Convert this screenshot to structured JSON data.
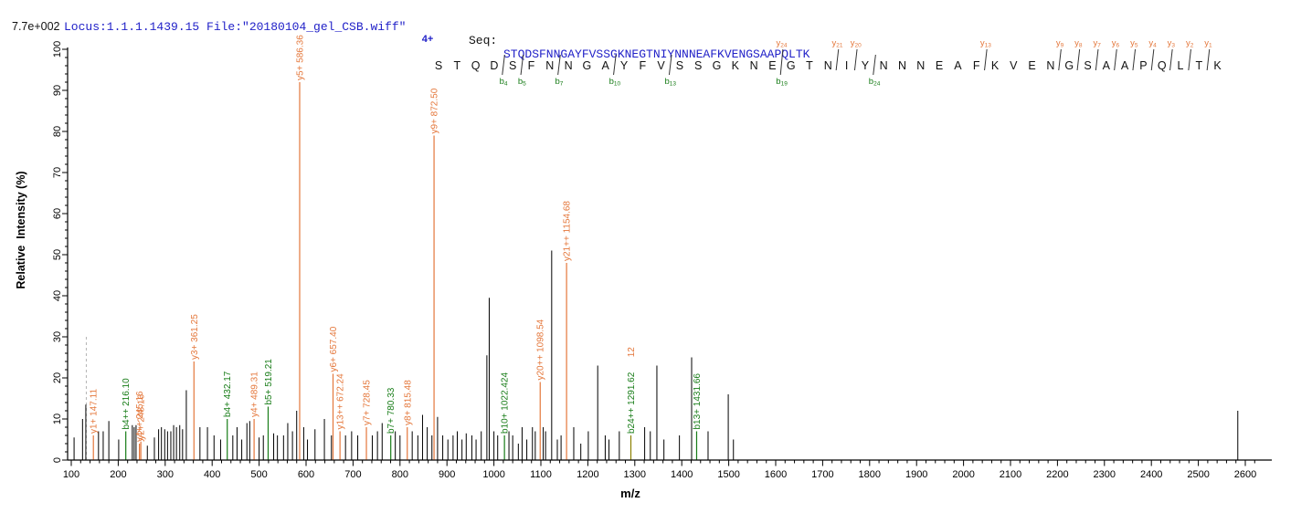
{
  "header": {
    "locus_text": "Locus:1.1.1.1439.15 File:\"20180104_gel_CSB.wiff\"",
    "seq_label": "Seq:",
    "seq_value": "STQDSFNNGAYFVSSGKNEGTNIYNNNEAFKVENGSAAPQLTK",
    "scale_note": "7.7e+002"
  },
  "colors": {
    "header_blue": "#2121c8",
    "y_ion_orange": "#e4773b",
    "b_ion_green": "#177c17",
    "peak_black": "#000000",
    "overlap_olive": "#8b8000",
    "dashed_gray": "#b4b4b4",
    "axis_black": "#000000"
  },
  "precursor": {
    "charge_label": "4+"
  },
  "sequence": {
    "residues": [
      "S",
      "T",
      "Q",
      "D",
      "S",
      "F",
      "N",
      "N",
      "G",
      "A",
      "Y",
      "F",
      "V",
      "S",
      "S",
      "G",
      "K",
      "N",
      "E",
      "G",
      "T",
      "N",
      "I",
      "Y",
      "N",
      "N",
      "N",
      "E",
      "A",
      "F",
      "K",
      "V",
      "E",
      "N",
      "G",
      "S",
      "A",
      "A",
      "P",
      "Q",
      "L",
      "T",
      "K"
    ],
    "b_ions": [
      {
        "n": 4,
        "after": 4
      },
      {
        "n": 5,
        "after": 5
      },
      {
        "n": 7,
        "after": 7
      },
      {
        "n": 10,
        "after": 10
      },
      {
        "n": 13,
        "after": 13
      },
      {
        "n": 19,
        "after": 19
      },
      {
        "n": 24,
        "after": 24
      }
    ],
    "y_ions": [
      {
        "n": 24,
        "before": 20
      },
      {
        "n": 21,
        "before": 23
      },
      {
        "n": 20,
        "before": 24
      },
      {
        "n": 13,
        "before": 31
      },
      {
        "n": 9,
        "before": 35
      },
      {
        "n": 8,
        "before": 36
      },
      {
        "n": 7,
        "before": 37
      },
      {
        "n": 6,
        "before": 38
      },
      {
        "n": 5,
        "before": 39
      },
      {
        "n": 4,
        "before": 40
      },
      {
        "n": 3,
        "before": 41
      },
      {
        "n": 2,
        "before": 42
      },
      {
        "n": 1,
        "before": 43
      }
    ]
  },
  "axes": {
    "x": {
      "label": "m/z",
      "min": 100,
      "max": 2600,
      "major_step": 100,
      "minor_step": 20,
      "tick_labels": [
        100,
        200,
        300,
        400,
        500,
        600,
        700,
        800,
        900,
        1000,
        1100,
        1200,
        1300,
        1400,
        1500,
        1600,
        1700,
        1800,
        1900,
        2000,
        2100,
        2200,
        2300,
        2400,
        2500,
        2600
      ]
    },
    "y": {
      "label": "Relative  Intensity (%)",
      "min": 0,
      "max": 100,
      "major_step": 10,
      "minor_step": 2,
      "tick_labels": [
        0,
        10,
        20,
        30,
        40,
        50,
        60,
        70,
        80,
        90,
        100
      ]
    }
  },
  "chart_data": {
    "type": "bar",
    "xlabel": "m/z",
    "ylabel": "Relative  Intensity (%)",
    "xlim": [
      100,
      2600
    ],
    "ylim": [
      0,
      100
    ],
    "full_scale_intensity": "7.7e+002",
    "dashed_marker": {
      "mz": 132,
      "pct": 30
    },
    "extra_label": {
      "text": "12",
      "mz": 1291.62,
      "color": "o"
    },
    "peaks": [
      [
        106,
        5.5,
        "k",
        null
      ],
      [
        124,
        10,
        "k",
        null
      ],
      [
        131,
        13.5,
        "k",
        null
      ],
      [
        147.11,
        6,
        "o",
        "y1+ 147.11"
      ],
      [
        158,
        7,
        "k",
        null
      ],
      [
        168,
        7,
        "k",
        null
      ],
      [
        180,
        9.5,
        "k",
        null
      ],
      [
        201,
        5,
        "k",
        null
      ],
      [
        216.1,
        7,
        "g",
        "b4++ 216.10"
      ],
      [
        230,
        8.5,
        "k",
        null
      ],
      [
        234,
        8,
        "k",
        null
      ],
      [
        238,
        8.5,
        "k",
        null
      ],
      [
        245.16,
        4,
        "o",
        "y4++ 245.16"
      ],
      [
        248.16,
        4.5,
        "o",
        "y2+ 248.16"
      ],
      [
        262,
        3.5,
        "k",
        null
      ],
      [
        277,
        5.5,
        "k",
        null
      ],
      [
        286,
        7.5,
        "k",
        null
      ],
      [
        292,
        8,
        "k",
        null
      ],
      [
        299,
        7.5,
        "k",
        null
      ],
      [
        305,
        7,
        "k",
        null
      ],
      [
        312,
        7,
        "k",
        null
      ],
      [
        318,
        8.5,
        "k",
        null
      ],
      [
        324,
        8,
        "k",
        null
      ],
      [
        331,
        8.5,
        "k",
        null
      ],
      [
        337,
        7.5,
        "k",
        null
      ],
      [
        345,
        17,
        "k",
        null
      ],
      [
        361.25,
        24,
        "o",
        "y3+ 361.25"
      ],
      [
        374,
        8,
        "k",
        null
      ],
      [
        390,
        8,
        "k",
        null
      ],
      [
        404,
        6,
        "k",
        null
      ],
      [
        418,
        5,
        "k",
        null
      ],
      [
        432.17,
        10,
        "g",
        "b4+ 432.17"
      ],
      [
        444,
        6,
        "k",
        null
      ],
      [
        453,
        8,
        "k",
        null
      ],
      [
        463,
        5,
        "k",
        null
      ],
      [
        474,
        9,
        "k",
        null
      ],
      [
        480,
        9.5,
        "k",
        null
      ],
      [
        489.31,
        10,
        "o",
        "y4+ 489.31"
      ],
      [
        500,
        5.5,
        "k",
        null
      ],
      [
        509,
        6,
        "k",
        null
      ],
      [
        519.21,
        13,
        "g",
        "b5+ 519.21"
      ],
      [
        531,
        6.5,
        "k",
        null
      ],
      [
        539,
        6,
        "k",
        null
      ],
      [
        552,
        6,
        "k",
        null
      ],
      [
        561,
        9,
        "k",
        null
      ],
      [
        571,
        7,
        "k",
        null
      ],
      [
        580,
        12,
        "k",
        null
      ],
      [
        586.36,
        100,
        "o",
        "y5+ 586.36"
      ],
      [
        595,
        8,
        "k",
        null
      ],
      [
        603,
        5,
        "k",
        null
      ],
      [
        619,
        7.5,
        "k",
        null
      ],
      [
        639,
        10,
        "k",
        null
      ],
      [
        654,
        6,
        "k",
        null
      ],
      [
        657.4,
        21,
        "o",
        "y6+ 657.40"
      ],
      [
        672.24,
        7,
        "o",
        "y13++ 672.24"
      ],
      [
        684,
        6,
        "k",
        null
      ],
      [
        697,
        7,
        "k",
        null
      ],
      [
        710,
        6,
        "k",
        null
      ],
      [
        728.45,
        8,
        "o",
        "y7+ 728.45"
      ],
      [
        741,
        6,
        "k",
        null
      ],
      [
        752,
        7,
        "k",
        null
      ],
      [
        762,
        9,
        "k",
        null
      ],
      [
        780.33,
        6,
        "g",
        "b7+ 780.33"
      ],
      [
        790,
        7,
        "k",
        null
      ],
      [
        800,
        6,
        "k",
        null
      ],
      [
        815.48,
        8,
        "o",
        "y8+ 815.48"
      ],
      [
        826,
        7,
        "k",
        null
      ],
      [
        838,
        6,
        "k",
        null
      ],
      [
        848,
        11,
        "k",
        null
      ],
      [
        858,
        8,
        "k",
        null
      ],
      [
        868,
        6,
        "k",
        null
      ],
      [
        872.5,
        79,
        "o",
        "y9+ 872.50"
      ],
      [
        880,
        10.5,
        "k",
        null
      ],
      [
        891,
        6,
        "k",
        null
      ],
      [
        902,
        5,
        "k",
        null
      ],
      [
        913,
        6,
        "k",
        null
      ],
      [
        922,
        7,
        "k",
        null
      ],
      [
        932,
        5,
        "k",
        null
      ],
      [
        941,
        6.5,
        "k",
        null
      ],
      [
        953,
        6,
        "k",
        null
      ],
      [
        962,
        5,
        "k",
        null
      ],
      [
        973,
        7,
        "k",
        null
      ],
      [
        985,
        25.5,
        "k",
        null
      ],
      [
        990,
        39.5,
        "k",
        null
      ],
      [
        1000,
        7,
        "k",
        null
      ],
      [
        1008,
        6,
        "k",
        null
      ],
      [
        1022.424,
        6,
        "g",
        "b10+ 1022.424"
      ],
      [
        1032,
        7,
        "k",
        null
      ],
      [
        1040,
        6,
        "k",
        null
      ],
      [
        1052,
        4,
        "k",
        null
      ],
      [
        1060,
        8,
        "k",
        null
      ],
      [
        1070,
        5,
        "k",
        null
      ],
      [
        1082,
        8,
        "k",
        null
      ],
      [
        1088,
        7,
        "k",
        null
      ],
      [
        1098.54,
        19,
        "o",
        "y20++ 1098.54"
      ],
      [
        1105,
        8,
        "k",
        null
      ],
      [
        1110,
        7,
        "k",
        null
      ],
      [
        1123,
        51,
        "k",
        null
      ],
      [
        1135,
        5,
        "k",
        null
      ],
      [
        1143,
        6,
        "k",
        null
      ],
      [
        1154.68,
        48,
        "o",
        "y21++ 1154.68"
      ],
      [
        1170,
        8,
        "k",
        null
      ],
      [
        1185,
        4,
        "k",
        null
      ],
      [
        1201,
        7,
        "k",
        null
      ],
      [
        1221,
        23,
        "k",
        null
      ],
      [
        1237,
        6,
        "k",
        null
      ],
      [
        1245,
        5,
        "k",
        null
      ],
      [
        1267,
        7,
        "k",
        null
      ],
      [
        1291.62,
        6,
        "ol",
        "b24++ 1291.62"
      ],
      [
        1321,
        8,
        "k",
        null
      ],
      [
        1333,
        7,
        "k",
        null
      ],
      [
        1347,
        23,
        "k",
        null
      ],
      [
        1362,
        5,
        "k",
        null
      ],
      [
        1395,
        6,
        "k",
        null
      ],
      [
        1421,
        25,
        "k",
        null
      ],
      [
        1431.66,
        7,
        "g",
        "b13+ 1431.66"
      ],
      [
        1456,
        7,
        "k",
        null
      ],
      [
        1499,
        16,
        "k",
        null
      ],
      [
        1510,
        5,
        "k",
        null
      ],
      [
        2584,
        12,
        "k",
        null
      ]
    ]
  }
}
